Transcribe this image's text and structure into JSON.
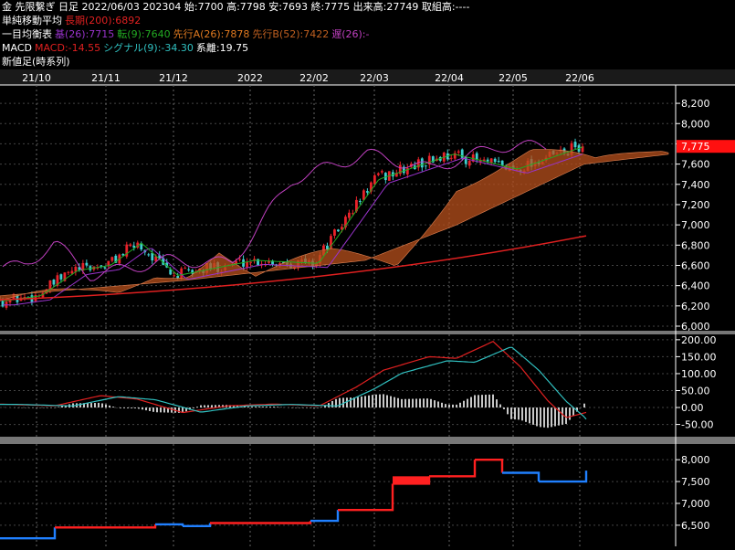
{
  "header": {
    "line1": "金 先限繋ぎ 日足 2022/06/03 202304 始:7700 高:7798 安:7693 終:7775 出来高:27749 取組高:----",
    "sma_title": "単純移動平均",
    "sma_long": "長期(200):6892",
    "ichimoku_title": "一目均衡表",
    "ichimoku_base": "基(26):7715",
    "ichimoku_conv": "転(9):7640",
    "ichimoku_spanA": "先行A(26):7878",
    "ichimoku_spanB": "先行B(52):7422",
    "ichimoku_lag": "遅(26):-",
    "macd_title": "MACD",
    "macd_value": "MACD:-14.55",
    "macd_signal": "シグナル(9):-34.30",
    "macd_diff": "系離:19.75",
    "newprice_title": "新値足(時系列)"
  },
  "colors": {
    "up": "#e8222a",
    "down": "#3dd0d0",
    "base": "#9933cc",
    "conv": "#22aa22",
    "lag": "#c040c0",
    "cloud": "#b8501c",
    "cloud_line": "#e08050",
    "sma": "#e02020",
    "macd": "#e02020",
    "signal": "#30c0c0",
    "hist": "#c8c8c8",
    "np_up": "#ff2020",
    "np_down": "#2080ff",
    "price_tag": "#ff1010"
  },
  "chart_data": [
    {
      "type": "candlestick",
      "panel": "price",
      "x_labels": [
        "21/10",
        "21/11",
        "21/12",
        "2022",
        "22/02",
        "22/03",
        "22/04",
        "22/05",
        "22/06"
      ],
      "y_ticks": [
        "8,200",
        "8,000",
        "7,800",
        "7,600",
        "7,400",
        "7,200",
        "7,000",
        "6,800",
        "6,600",
        "6,400",
        "6,200",
        "6,000"
      ],
      "ylim": [
        6000,
        8300
      ],
      "last_price_label": "7,775",
      "close_series_monthly": {
        "x": [
          "21/10",
          "21/11",
          "21/12",
          "2022",
          "22/02",
          "22/03",
          "22/04",
          "22/05",
          "22/06"
        ],
        "close": [
          6300,
          6600,
          6500,
          6650,
          6620,
          7450,
          7700,
          7550,
          7775
        ]
      },
      "sma200": {
        "start": 6260,
        "end": 6892
      }
    },
    {
      "type": "line",
      "panel": "macd",
      "y_ticks": [
        "200.00",
        "150.00",
        "100.00",
        "50.00",
        "0.00",
        "-50.00"
      ],
      "ylim": [
        -70,
        205
      ],
      "series": [
        {
          "name": "MACD",
          "values": [
            -14.55
          ]
        },
        {
          "name": "シグナル(9)",
          "values": [
            -34.3
          ]
        }
      ]
    },
    {
      "type": "line",
      "panel": "new_price",
      "y_ticks": [
        "8,000",
        "7,500",
        "7,000",
        "6,500"
      ],
      "ylim": [
        6100,
        8150
      ]
    }
  ]
}
